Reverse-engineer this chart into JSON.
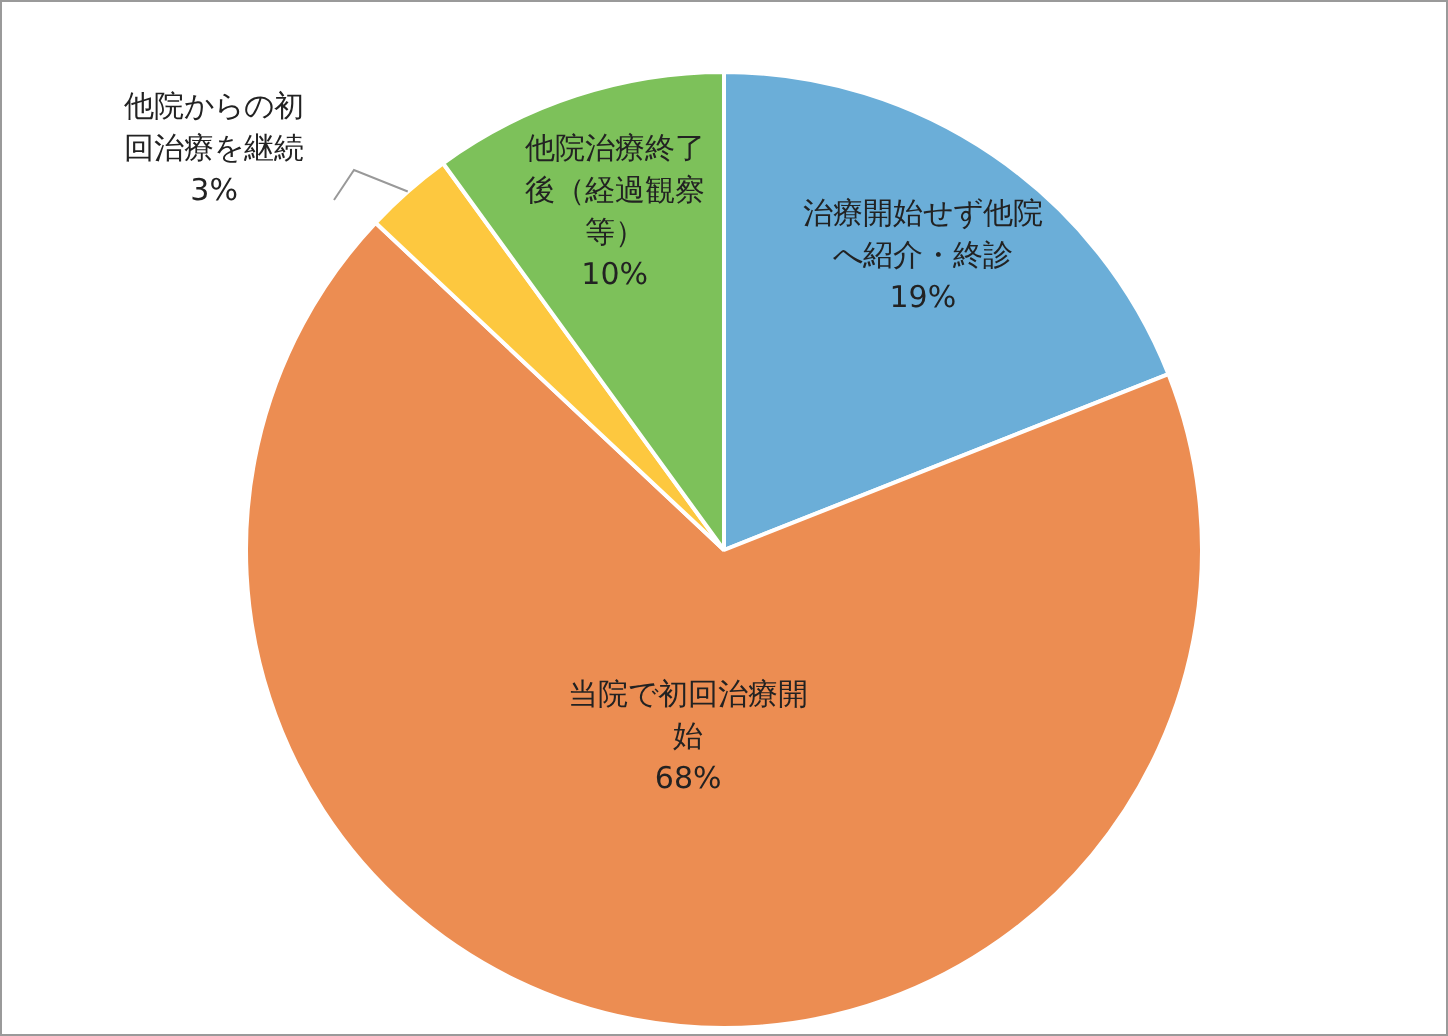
{
  "chart_data": {
    "type": "pie",
    "categories": [
      "治療開始せず他院へ紹介・終診",
      "当院で初回治療開始",
      "他院からの初回治療を継続",
      "他院治療終了後（経過観察等）"
    ],
    "values": [
      19,
      68,
      3,
      10
    ],
    "value_labels": [
      "19%",
      "68%",
      "3%",
      "10%"
    ],
    "colors": [
      "#6baed8",
      "#ec8d52",
      "#fdc83f",
      "#7dc15a"
    ],
    "legend": false
  }
}
